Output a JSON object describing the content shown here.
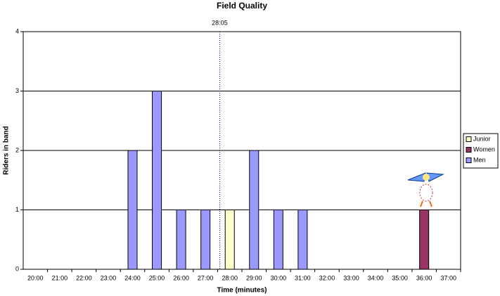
{
  "chart_data": {
    "type": "bar",
    "stacked": true,
    "title": "Field Quality",
    "x_label": "Time (minutes)",
    "y_label": "Riders in band",
    "annotation": "28:05",
    "categories": [
      "20:00",
      "21:00",
      "22:00",
      "23:00",
      "24:00",
      "25:00",
      "26:00",
      "27:00",
      "28:00",
      "29:00",
      "30:00",
      "31:00",
      "32:00",
      "33:00",
      "34:00",
      "35:00",
      "36:00",
      "37:00"
    ],
    "series": [
      {
        "name": "Junior",
        "color": "#ffffcc",
        "values": [
          0,
          0,
          0,
          0,
          0,
          0,
          0,
          0,
          1,
          0,
          0,
          0,
          0,
          0,
          0,
          0,
          0,
          0
        ]
      },
      {
        "name": "Women",
        "color": "#993366",
        "values": [
          0,
          0,
          0,
          0,
          0,
          0,
          0,
          0,
          0,
          0,
          0,
          0,
          0,
          0,
          0,
          0,
          1,
          0
        ]
      },
      {
        "name": "Men",
        "color": "#9999ff",
        "values": [
          0,
          0,
          0,
          0,
          2,
          3,
          1,
          1,
          0,
          2,
          1,
          1,
          0,
          0,
          0,
          0,
          0,
          0
        ]
      }
    ],
    "ylim": [
      0,
      4
    ],
    "yticks": [
      0,
      1,
      2,
      3,
      4
    ],
    "grid": true,
    "legend": "right"
  }
}
